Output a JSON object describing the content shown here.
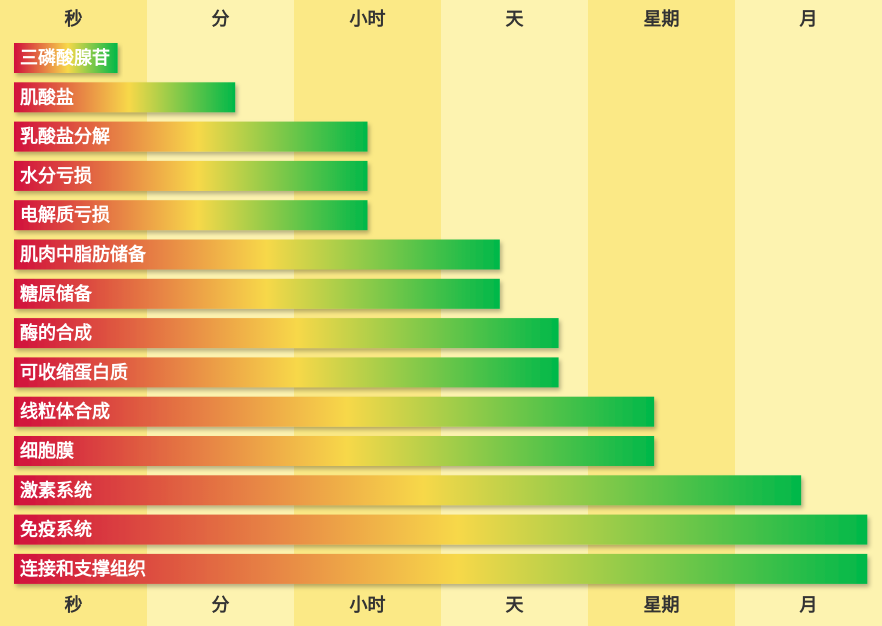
{
  "chart_data": {
    "type": "bar",
    "orientation": "horizontal",
    "time_units": [
      "秒",
      "分",
      "小时",
      "天",
      "星期",
      "月"
    ],
    "categories": [
      "三磷酸腺苷",
      "肌酸盐",
      "乳酸盐分解",
      "水分亏损",
      "电解质亏损",
      "肌肉中脂肪储备",
      "糖原储备",
      "酶的合成",
      "可收缩蛋白质",
      "线粒体合成",
      "细胞膜",
      "激素系统",
      "免疫系统",
      "连接和支撑组织"
    ],
    "values": [
      0.8,
      1.6,
      2.5,
      2.5,
      2.5,
      3.4,
      3.4,
      3.8,
      3.8,
      4.45,
      4.45,
      5.45,
      5.9,
      5.9
    ],
    "value_unit": "time-scale position (0 = 秒 column start, 6 = 月 column end)",
    "xlim": [
      0,
      6
    ],
    "colors": {
      "band_dark": "#fbe986",
      "band_light": "#fdf3b0",
      "bar_start": "#d10f3c",
      "bar_mid": "#f7d84a",
      "bar_end": "#00b84a"
    }
  }
}
